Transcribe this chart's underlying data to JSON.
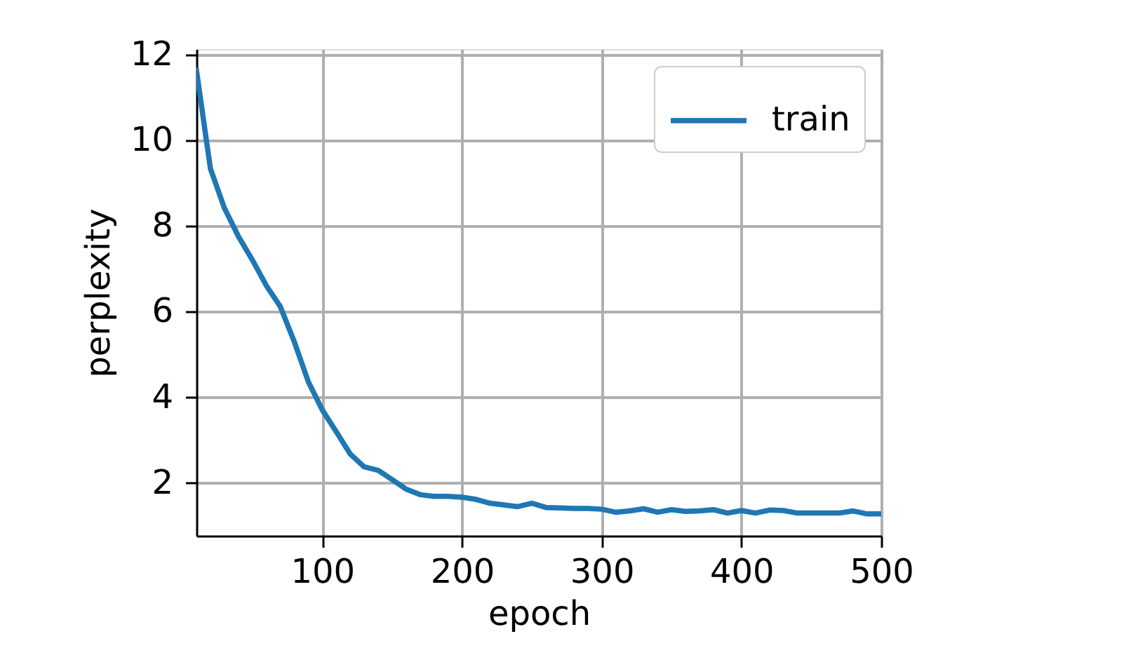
{
  "chart_data": {
    "type": "line",
    "xlabel": "epoch",
    "ylabel": "perplexity",
    "x": [
      10,
      20,
      30,
      40,
      50,
      60,
      70,
      80,
      90,
      100,
      110,
      120,
      130,
      140,
      150,
      160,
      170,
      180,
      190,
      200,
      210,
      220,
      230,
      240,
      250,
      260,
      270,
      280,
      290,
      300,
      310,
      320,
      330,
      340,
      350,
      360,
      370,
      380,
      390,
      400,
      410,
      420,
      430,
      440,
      450,
      460,
      470,
      480,
      490,
      500
    ],
    "series": [
      {
        "name": "train",
        "color": "#1f77b4",
        "values": [
          11.64,
          9.34,
          8.42,
          7.76,
          7.21,
          6.61,
          6.12,
          5.3,
          4.37,
          3.71,
          3.2,
          2.68,
          2.38,
          2.3,
          2.08,
          1.86,
          1.73,
          1.69,
          1.69,
          1.67,
          1.62,
          1.53,
          1.49,
          1.45,
          1.53,
          1.43,
          1.42,
          1.41,
          1.41,
          1.39,
          1.32,
          1.35,
          1.4,
          1.32,
          1.38,
          1.34,
          1.35,
          1.38,
          1.3,
          1.36,
          1.3,
          1.37,
          1.36,
          1.3,
          1.3,
          1.3,
          1.3,
          1.35,
          1.28,
          1.28
        ]
      }
    ],
    "xlim": [
      10,
      500
    ],
    "xticks": [
      100,
      200,
      300,
      400,
      500
    ],
    "ylim": [
      0.77,
      12.13
    ],
    "yticks": [
      2,
      4,
      6,
      8,
      10,
      12
    ],
    "grid": true,
    "legend": "top right",
    "line_style": "solid"
  }
}
